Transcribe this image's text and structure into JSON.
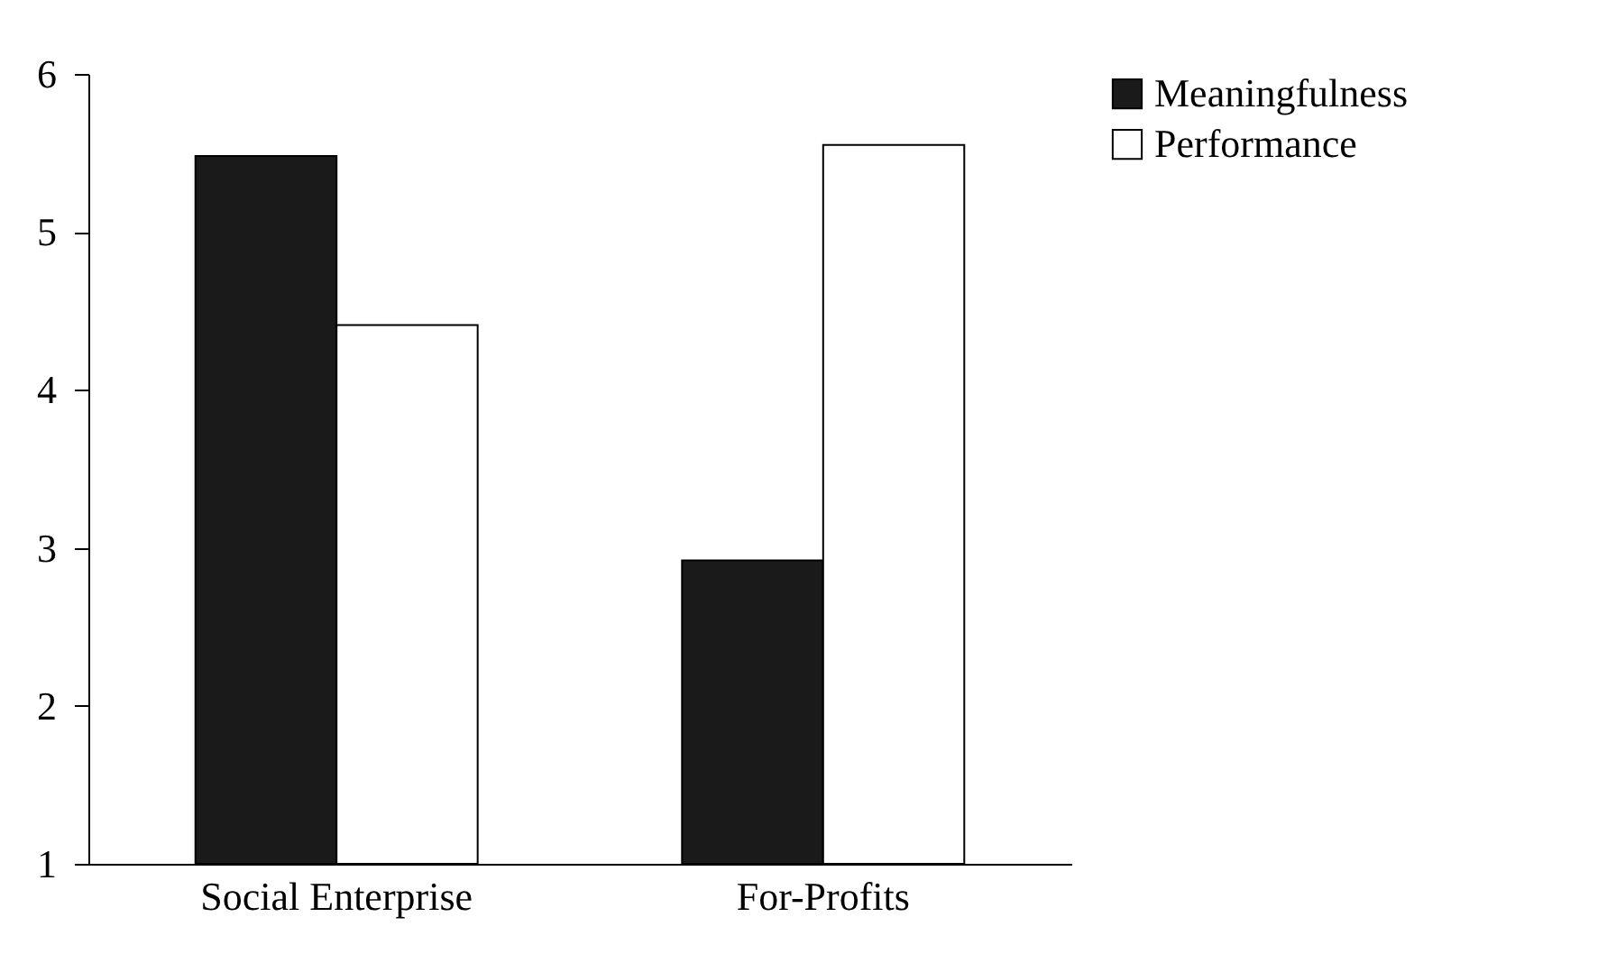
{
  "chart_data": {
    "type": "bar",
    "categories": [
      "Social Enterprise",
      "For-Profits"
    ],
    "series": [
      {
        "name": "Meaningfulness",
        "color": "#1a1a1a",
        "values": [
          5.48,
          2.92
        ]
      },
      {
        "name": "Performance",
        "color": "#ffffff",
        "values": [
          4.41,
          5.55
        ]
      }
    ],
    "ylim": [
      1,
      6
    ],
    "yticks": [
      1,
      2,
      3,
      4,
      5,
      6
    ],
    "grid": false,
    "legend": "right"
  }
}
